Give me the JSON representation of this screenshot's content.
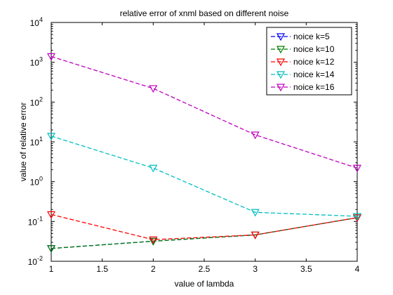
{
  "chart_data": {
    "type": "line",
    "title": "relative error of xnml based on different noise",
    "xlabel": "value of lambda",
    "ylabel": "value of relative error",
    "xlim": [
      1,
      4
    ],
    "ylim": [
      0.01,
      10000
    ],
    "yscale": "log",
    "grid": false,
    "legend_position": "top-right",
    "x_ticks": [
      {
        "value": 1,
        "label": "1"
      },
      {
        "value": 1.5,
        "label": "1.5"
      },
      {
        "value": 2,
        "label": "2"
      },
      {
        "value": 2.5,
        "label": "2.5"
      },
      {
        "value": 3,
        "label": "3"
      },
      {
        "value": 3.5,
        "label": "3.5"
      },
      {
        "value": 4,
        "label": "4"
      }
    ],
    "y_ticks": [
      {
        "value": 0.01,
        "base": "10",
        "exp": "-2"
      },
      {
        "value": 0.1,
        "base": "10",
        "exp": "-1"
      },
      {
        "value": 1,
        "base": "10",
        "exp": "0"
      },
      {
        "value": 10,
        "base": "10",
        "exp": "1"
      },
      {
        "value": 100,
        "base": "10",
        "exp": "2"
      },
      {
        "value": 1000,
        "base": "10",
        "exp": "3"
      },
      {
        "value": 10000,
        "base": "10",
        "exp": "4"
      }
    ],
    "x": [
      1,
      2,
      3,
      4
    ],
    "series": [
      {
        "name": "noice k=5",
        "color": "#0000ff",
        "values": [
          0.021,
          0.032,
          0.046,
          0.125
        ]
      },
      {
        "name": "noice k=10",
        "color": "#008000",
        "values": [
          0.021,
          0.032,
          0.046,
          0.125
        ]
      },
      {
        "name": "noice k=12",
        "color": "#ff0000",
        "values": [
          0.15,
          0.035,
          0.046,
          0.125
        ]
      },
      {
        "name": "noice k=14",
        "color": "#00bfbf",
        "values": [
          14,
          2.2,
          0.17,
          0.135
        ]
      },
      {
        "name": "noice k=16",
        "color": "#bf00bf",
        "values": [
          1400,
          220,
          15,
          2.2
        ]
      }
    ]
  }
}
